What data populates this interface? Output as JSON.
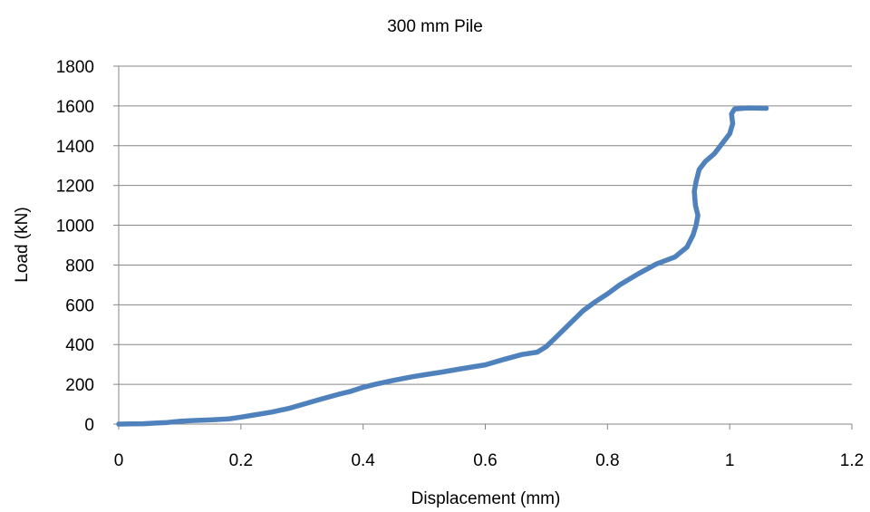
{
  "chart_data": {
    "type": "line",
    "title": "300 mm Pile",
    "xlabel": "Displacement (mm)",
    "ylabel": "Load (kN)",
    "xlim": [
      0,
      1.2
    ],
    "ylim": [
      0,
      1800
    ],
    "x_ticks": [
      "0",
      "0.2",
      "0.4",
      "0.6",
      "0.8",
      "1",
      "1.2"
    ],
    "y_ticks": [
      "0",
      "200",
      "400",
      "600",
      "800",
      "1000",
      "1200",
      "1400",
      "1600",
      "1800"
    ],
    "grid": "horizontal",
    "legend": "none",
    "series": [
      {
        "color": "#4f81bd",
        "points": [
          [
            0,
            0
          ],
          [
            0.02,
            1
          ],
          [
            0.04,
            2
          ],
          [
            0.06,
            5
          ],
          [
            0.08,
            8
          ],
          [
            0.1,
            14
          ],
          [
            0.12,
            18
          ],
          [
            0.15,
            21
          ],
          [
            0.18,
            26
          ],
          [
            0.2,
            35
          ],
          [
            0.22,
            45
          ],
          [
            0.25,
            60
          ],
          [
            0.28,
            80
          ],
          [
            0.3,
            98
          ],
          [
            0.33,
            125
          ],
          [
            0.36,
            150
          ],
          [
            0.38,
            165
          ],
          [
            0.4,
            185
          ],
          [
            0.42,
            200
          ],
          [
            0.45,
            220
          ],
          [
            0.48,
            238
          ],
          [
            0.5,
            248
          ],
          [
            0.53,
            262
          ],
          [
            0.56,
            278
          ],
          [
            0.6,
            298
          ],
          [
            0.63,
            325
          ],
          [
            0.66,
            350
          ],
          [
            0.685,
            362
          ],
          [
            0.7,
            390
          ],
          [
            0.72,
            450
          ],
          [
            0.74,
            510
          ],
          [
            0.76,
            570
          ],
          [
            0.78,
            615
          ],
          [
            0.8,
            655
          ],
          [
            0.82,
            700
          ],
          [
            0.85,
            755
          ],
          [
            0.88,
            805
          ],
          [
            0.91,
            840
          ],
          [
            0.93,
            890
          ],
          [
            0.94,
            950
          ],
          [
            0.945,
            1000
          ],
          [
            0.948,
            1050
          ],
          [
            0.944,
            1100
          ],
          [
            0.942,
            1170
          ],
          [
            0.945,
            1220
          ],
          [
            0.95,
            1280
          ],
          [
            0.96,
            1320
          ],
          [
            0.975,
            1360
          ],
          [
            0.99,
            1420
          ],
          [
            1.0,
            1460
          ],
          [
            1.005,
            1510
          ],
          [
            1.003,
            1560
          ],
          [
            1.008,
            1585
          ],
          [
            1.03,
            1590
          ],
          [
            1.06,
            1588
          ]
        ]
      }
    ]
  }
}
